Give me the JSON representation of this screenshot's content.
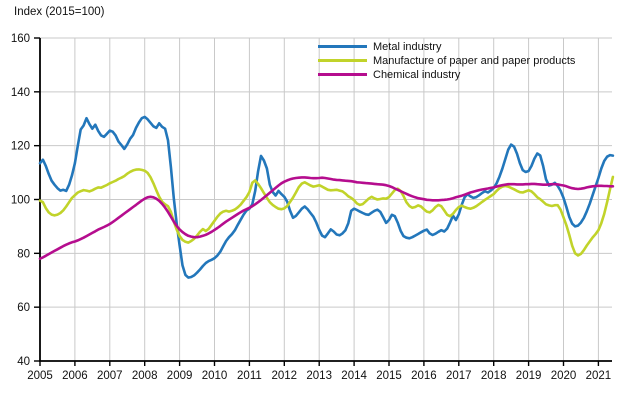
{
  "title": "Index (2015=100)",
  "legend": {
    "items": [
      {
        "label": "Metal industry"
      },
      {
        "label": "Manufacture of paper and paper products"
      },
      {
        "label": "Chemical industry"
      }
    ]
  },
  "chart_data": {
    "type": "line",
    "title": "Index (2015=100)",
    "x_tick_labels": [
      "2005",
      "2006",
      "2007",
      "2008",
      "2009",
      "2010",
      "2011",
      "2012",
      "2013",
      "2014",
      "2015",
      "2016",
      "2017",
      "2018",
      "2019",
      "2020",
      "2021"
    ],
    "x_frequency": "monthly",
    "x_range": "2005-01 to 2021-06",
    "ylim": [
      40,
      160
    ],
    "y_ticks": [
      40,
      60,
      80,
      100,
      120,
      140,
      160
    ],
    "grid": true,
    "legend_position": "inside-top-center",
    "axis_color": "#000000",
    "grid_color": "#c9c9c9",
    "series": [
      {
        "name": "Metal industry",
        "color": "#2377bb",
        "values": [
          113.5,
          114.8,
          112.5,
          109.5,
          107.0,
          105.5,
          104.2,
          103.3,
          103.6,
          103.2,
          105.5,
          109.0,
          113.5,
          120.0,
          126.0,
          127.5,
          130.2,
          128.0,
          126.3,
          127.8,
          125.5,
          123.8,
          123.3,
          124.4,
          125.6,
          125.2,
          123.8,
          121.5,
          120.2,
          118.8,
          120.5,
          122.6,
          124.0,
          126.6,
          128.6,
          130.2,
          130.7,
          129.8,
          128.5,
          127.2,
          126.6,
          128.3,
          127.0,
          126.3,
          122.0,
          112.0,
          100.5,
          91.0,
          83.0,
          75.5,
          72.0,
          71.0,
          71.2,
          71.8,
          72.8,
          74.0,
          75.3,
          76.4,
          77.1,
          77.6,
          78.2,
          79.2,
          80.6,
          82.6,
          84.6,
          86.0,
          87.1,
          88.6,
          90.6,
          92.5,
          94.4,
          95.9,
          96.6,
          98.2,
          103.2,
          110.5,
          116.2,
          114.5,
          111.5,
          105.5,
          102.8,
          101.5,
          103.2,
          102.0,
          101.0,
          99.2,
          95.8,
          93.2,
          93.9,
          95.2,
          96.6,
          97.4,
          96.4,
          95.0,
          93.6,
          91.4,
          88.7,
          86.6,
          86.0,
          87.4,
          88.9,
          88.1,
          87.0,
          86.7,
          87.4,
          88.6,
          91.2,
          95.8,
          96.6,
          96.1,
          95.5,
          95.0,
          94.5,
          94.3,
          95.1,
          95.8,
          96.2,
          95.4,
          93.4,
          91.3,
          92.4,
          94.3,
          93.8,
          91.4,
          88.4,
          86.4,
          85.8,
          85.6,
          86.0,
          86.6,
          87.2,
          87.8,
          88.4,
          88.8,
          87.4,
          86.8,
          87.3,
          88.0,
          88.6,
          88.1,
          89.2,
          91.5,
          94.0,
          92.4,
          94.5,
          98.0,
          100.8,
          102.0,
          101.2,
          100.6,
          100.9,
          101.6,
          102.4,
          103.1,
          102.6,
          103.3,
          104.3,
          106.0,
          108.5,
          111.5,
          115.0,
          118.5,
          120.4,
          119.6,
          117.0,
          113.5,
          110.9,
          110.2,
          110.6,
          112.5,
          115.2,
          117.1,
          116.4,
          112.5,
          107.5,
          105.2,
          105.5,
          106.2,
          105.0,
          103.2,
          100.6,
          97.2,
          93.5,
          91.0,
          90.0,
          90.3,
          91.4,
          93.2,
          95.6,
          98.4,
          101.6,
          104.8,
          108.0,
          111.5,
          114.3,
          115.9,
          116.5,
          116.3
        ]
      },
      {
        "name": "Manufacture of paper and paper products",
        "color": "#c1d32a",
        "values": [
          99.6,
          99.0,
          96.8,
          95.2,
          94.4,
          94.1,
          94.4,
          95.0,
          96.0,
          97.4,
          99.0,
          100.6,
          101.6,
          102.6,
          103.1,
          103.5,
          103.3,
          103.0,
          103.4,
          104.0,
          104.5,
          104.4,
          104.9,
          105.4,
          106.0,
          106.5,
          107.0,
          107.6,
          108.1,
          108.7,
          109.6,
          110.3,
          110.8,
          111.1,
          111.2,
          111.0,
          110.7,
          109.9,
          108.3,
          106.0,
          103.4,
          101.0,
          99.2,
          98.2,
          97.5,
          95.4,
          91.8,
          88.8,
          86.4,
          85.0,
          84.3,
          84.0,
          84.6,
          85.4,
          86.6,
          88.0,
          89.0,
          88.3,
          89.1,
          90.6,
          92.1,
          93.6,
          94.8,
          95.5,
          95.8,
          95.5,
          95.8,
          96.3,
          97.1,
          98.1,
          99.5,
          100.9,
          102.8,
          106.2,
          107.1,
          105.8,
          104.2,
          102.4,
          100.6,
          99.0,
          98.0,
          97.2,
          96.6,
          96.4,
          96.7,
          97.6,
          99.1,
          100.7,
          102.6,
          104.6,
          105.9,
          106.4,
          105.8,
          105.2,
          104.8,
          105.0,
          105.3,
          104.8,
          104.2,
          103.6,
          103.4,
          103.5,
          103.6,
          103.3,
          103.0,
          102.2,
          101.2,
          100.6,
          99.7,
          98.5,
          98.0,
          98.3,
          99.3,
          100.3,
          101.0,
          100.4,
          100.0,
          100.2,
          100.4,
          100.3,
          100.9,
          102.2,
          103.5,
          104.0,
          103.2,
          101.3,
          99.0,
          97.6,
          96.9,
          97.2,
          97.8,
          97.4,
          96.4,
          95.5,
          95.2,
          96.0,
          97.2,
          98.0,
          97.5,
          95.9,
          94.3,
          93.8,
          94.7,
          96.1,
          97.2,
          97.7,
          97.2,
          96.8,
          96.6,
          96.9,
          97.5,
          98.3,
          99.1,
          99.9,
          100.6,
          101.3,
          102.0,
          103.2,
          104.2,
          104.8,
          105.0,
          104.8,
          104.3,
          103.8,
          103.2,
          102.7,
          102.6,
          103.0,
          103.4,
          103.0,
          102.0,
          100.8,
          100.1,
          99.2,
          98.2,
          97.8,
          97.6,
          97.9,
          97.9,
          96.2,
          93.4,
          90.4,
          86.8,
          82.8,
          80.0,
          79.2,
          79.8,
          81.2,
          82.9,
          84.4,
          85.9,
          87.1,
          88.6,
          91.2,
          94.6,
          99.0,
          103.8,
          108.4
        ]
      },
      {
        "name": "Chemical industry",
        "color": "#b50d8e",
        "values": [
          78.0,
          78.5,
          79.1,
          79.7,
          80.3,
          80.9,
          81.5,
          82.1,
          82.7,
          83.2,
          83.7,
          84.1,
          84.4,
          84.8,
          85.3,
          85.8,
          86.4,
          87.0,
          87.6,
          88.2,
          88.8,
          89.3,
          89.8,
          90.3,
          90.9,
          91.6,
          92.4,
          93.2,
          94.0,
          94.8,
          95.6,
          96.4,
          97.2,
          98.0,
          98.8,
          99.6,
          100.3,
          100.8,
          101.0,
          100.8,
          100.3,
          99.5,
          98.4,
          97.0,
          95.4,
          93.6,
          91.8,
          90.2,
          88.9,
          87.9,
          87.1,
          86.5,
          86.2,
          86.0,
          86.0,
          86.2,
          86.5,
          86.9,
          87.4,
          88.0,
          88.7,
          89.4,
          90.2,
          91.0,
          91.8,
          92.5,
          93.2,
          93.9,
          94.6,
          95.3,
          95.9,
          96.4,
          96.9,
          97.5,
          98.2,
          99.0,
          99.8,
          100.7,
          101.6,
          102.5,
          103.4,
          104.3,
          105.2,
          106.0,
          106.6,
          107.1,
          107.5,
          107.8,
          108.0,
          108.1,
          108.2,
          108.2,
          108.1,
          108.0,
          107.9,
          107.9,
          108.0,
          108.1,
          108.0,
          107.8,
          107.6,
          107.4,
          107.3,
          107.2,
          107.1,
          107.0,
          106.9,
          106.8,
          106.6,
          106.4,
          106.3,
          106.2,
          106.1,
          106.0,
          105.9,
          105.8,
          105.7,
          105.6,
          105.5,
          105.3,
          105.0,
          104.6,
          104.1,
          103.6,
          103.1,
          102.6,
          102.1,
          101.6,
          101.2,
          100.8,
          100.5,
          100.3,
          100.1,
          99.9,
          99.8,
          99.7,
          99.7,
          99.7,
          99.8,
          99.9,
          100.0,
          100.2,
          100.5,
          100.8,
          101.1,
          101.4,
          101.8,
          102.2,
          102.6,
          102.9,
          103.2,
          103.5,
          103.7,
          103.9,
          104.1,
          104.3,
          104.5,
          104.8,
          105.1,
          105.3,
          105.5,
          105.7,
          105.7,
          105.7,
          105.6,
          105.6,
          105.6,
          105.7,
          105.7,
          105.8,
          105.8,
          105.7,
          105.6,
          105.5,
          105.5,
          105.6,
          105.7,
          105.7,
          105.6,
          105.4,
          105.2,
          104.9,
          104.5,
          104.2,
          104.0,
          103.9,
          104.0,
          104.2,
          104.5,
          104.7,
          104.9,
          105.0,
          105.1,
          105.1,
          105.0,
          105.0,
          104.9,
          104.9
        ]
      }
    ]
  }
}
